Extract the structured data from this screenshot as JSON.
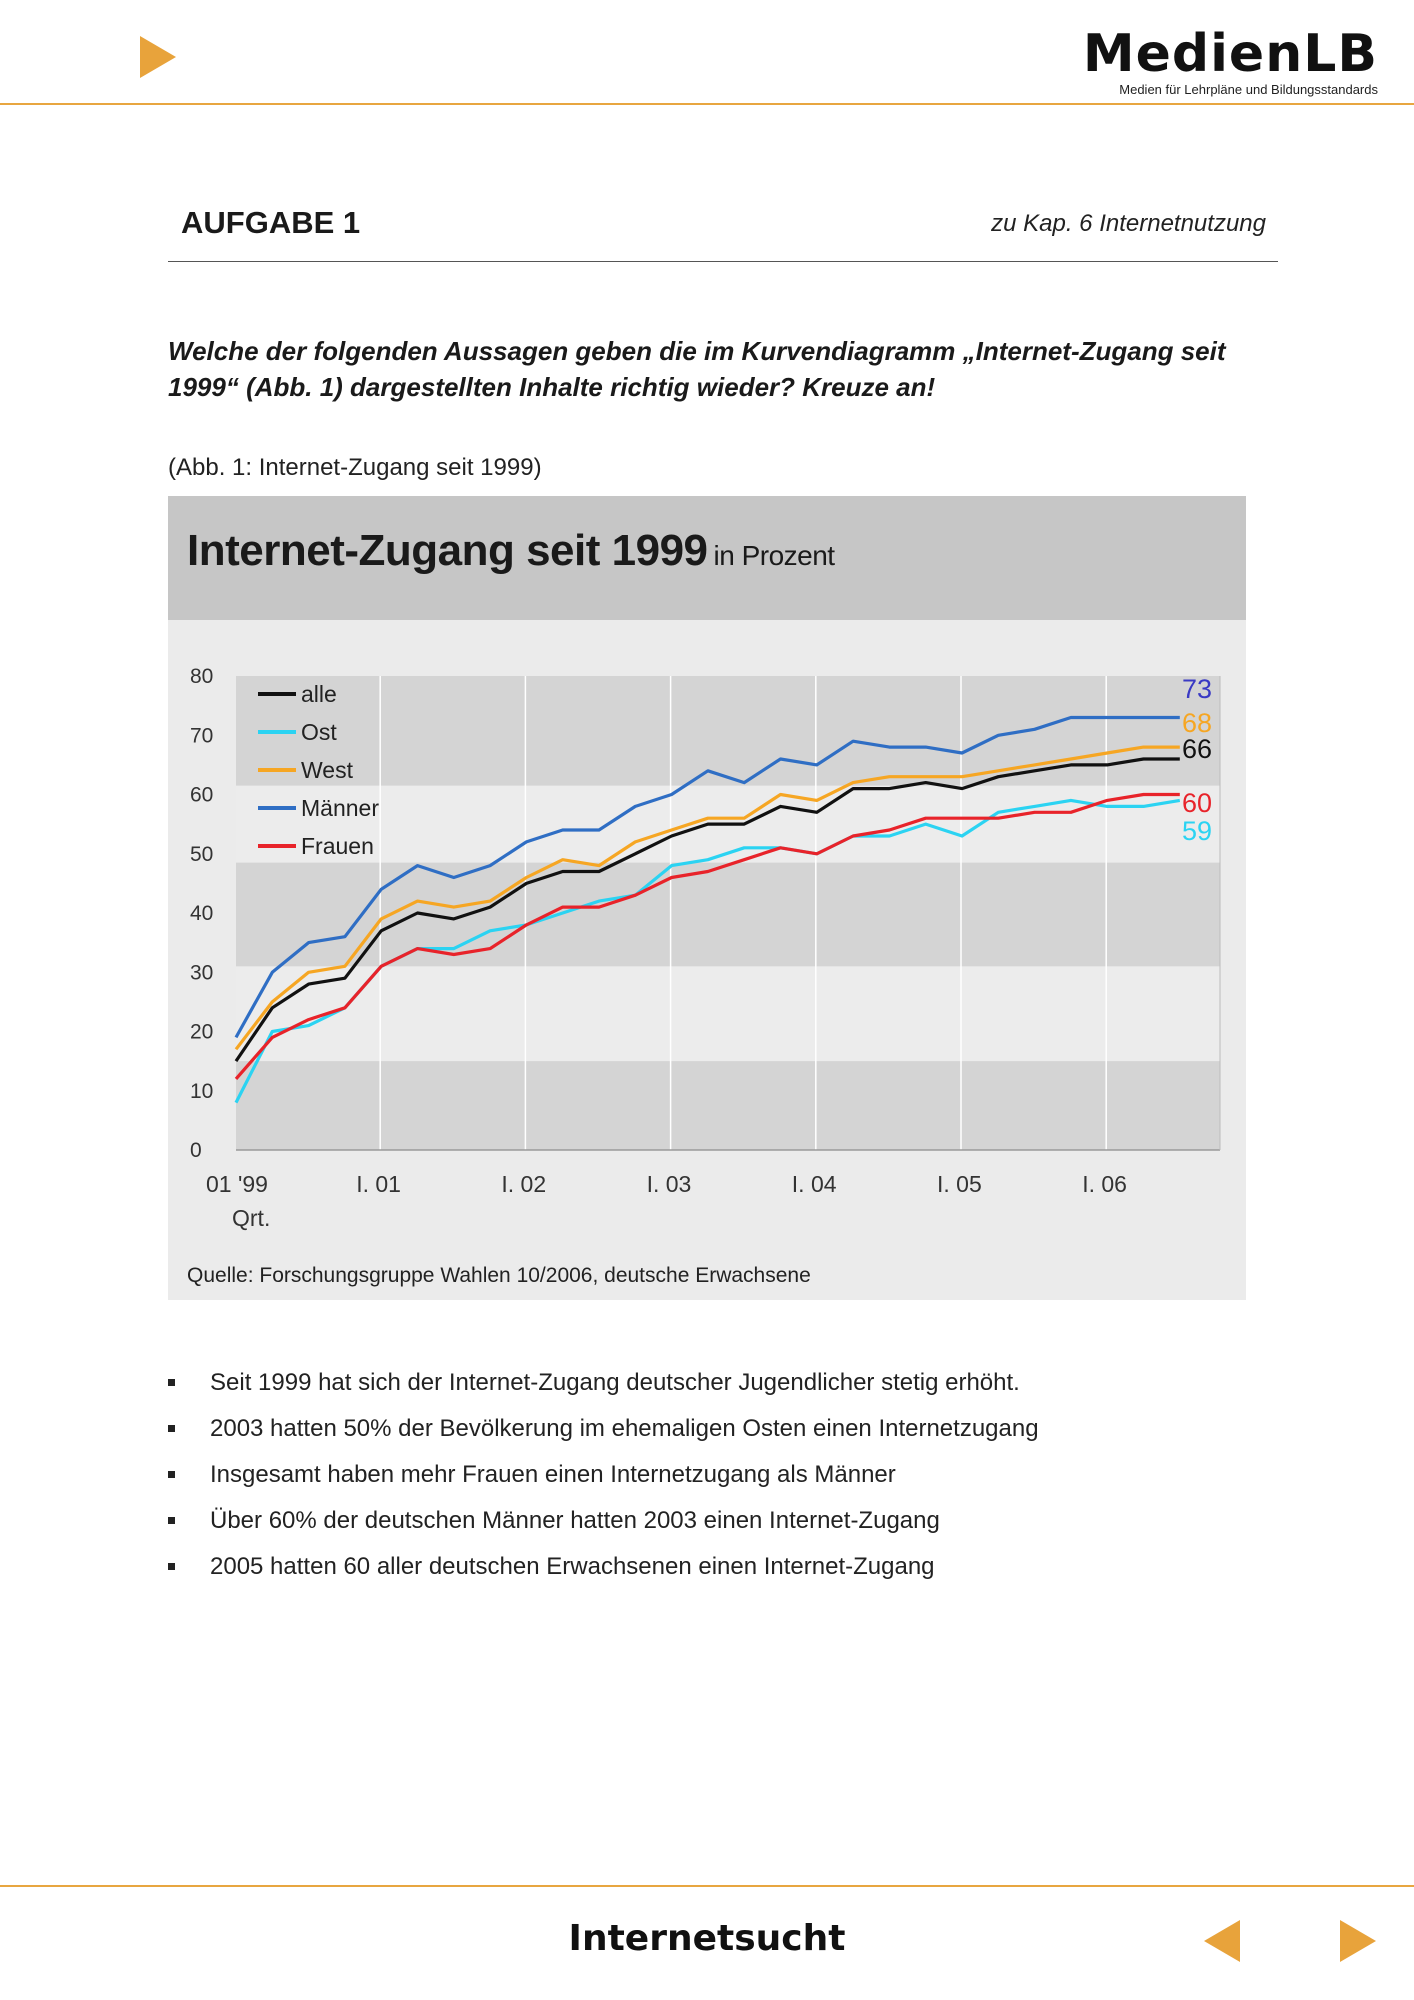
{
  "header": {
    "logo_main": "MedienLB",
    "logo_sub": "Medien für Lehrpläne und Bildungsstandards"
  },
  "task": {
    "title": "AUFGABE 1",
    "reference": "zu Kap. 6 Internetnutzung",
    "question": "Welche der folgenden Aussagen geben die im Kurvendiagramm „Internet-Zugang seit 1999“ (Abb. 1) dargestellten Inhalte richtig wieder? Kreuze an!",
    "caption": "(Abb. 1: Internet-Zugang seit 1999)"
  },
  "chart_data": {
    "type": "line",
    "title": "Internet-Zugang seit 1999",
    "subtitle": "in Prozent",
    "source": "Quelle: Forschungsgruppe Wahlen 10/2006, deutsche Erwachsene",
    "x_tick_labels": [
      "01 '99",
      "I. 01",
      "I. 02",
      "I. 03",
      "I. 04",
      "I. 05",
      "I. 06"
    ],
    "x_axis_note": "Qrt.",
    "ylim": [
      0,
      80
    ],
    "y_ticks": [
      0,
      10,
      20,
      30,
      40,
      50,
      60,
      70,
      80
    ],
    "legend_position": "top-left",
    "colors": {
      "alle": "#111111",
      "Ost": "#2bd3f2",
      "West": "#f6a623",
      "Männer": "#2f6ec4",
      "Frauen": "#e8232a"
    },
    "series": [
      {
        "name": "alle",
        "end_label": "66",
        "label_color": "#111111",
        "values": [
          15,
          24,
          28,
          29,
          37,
          40,
          39,
          41,
          45,
          47,
          47,
          50,
          53,
          55,
          55,
          58,
          57,
          61,
          61,
          62,
          61,
          63,
          64,
          65,
          65,
          66,
          66
        ]
      },
      {
        "name": "Ost",
        "end_label": "59",
        "label_color": "#2bd3f2",
        "values": [
          8,
          20,
          21,
          24,
          31,
          34,
          34,
          37,
          38,
          40,
          42,
          43,
          48,
          49,
          51,
          51,
          50,
          53,
          53,
          55,
          53,
          57,
          58,
          59,
          58,
          58,
          59
        ]
      },
      {
        "name": "West",
        "end_label": "68",
        "label_color": "#f6a623",
        "values": [
          17,
          25,
          30,
          31,
          39,
          42,
          41,
          42,
          46,
          49,
          48,
          52,
          54,
          56,
          56,
          60,
          59,
          62,
          63,
          63,
          63,
          64,
          65,
          66,
          67,
          68,
          68
        ]
      },
      {
        "name": "Männer",
        "end_label": "73",
        "label_color": "#3a3ac4",
        "values": [
          19,
          30,
          35,
          36,
          44,
          48,
          46,
          48,
          52,
          54,
          54,
          58,
          60,
          64,
          62,
          66,
          65,
          69,
          68,
          68,
          67,
          70,
          71,
          73,
          73,
          73,
          73
        ]
      },
      {
        "name": "Frauen",
        "end_label": "60",
        "label_color": "#e8232a",
        "values": [
          12,
          19,
          22,
          24,
          31,
          34,
          33,
          34,
          38,
          41,
          41,
          43,
          46,
          47,
          49,
          51,
          50,
          53,
          54,
          56,
          56,
          56,
          57,
          57,
          59,
          60,
          60
        ]
      }
    ]
  },
  "statements": [
    "Seit 1999 hat sich der Internet-Zugang deutscher Jugendlicher stetig erhöht.",
    "2003 hatten 50% der Bevölkerung im ehemaligen Osten einen Internetzugang",
    "Insgesamt haben mehr Frauen einen Internetzugang als Männer",
    "Über 60% der deutschen Männer hatten 2003 einen Internet-Zugang",
    "2005 hatten 60 aller deutschen Erwachsenen einen Internet-Zugang"
  ],
  "footer": {
    "title": "Internetsucht",
    "icons": [
      "play-arrow-icon",
      "back-arrow-icon",
      "forward-arrow-icon"
    ]
  }
}
